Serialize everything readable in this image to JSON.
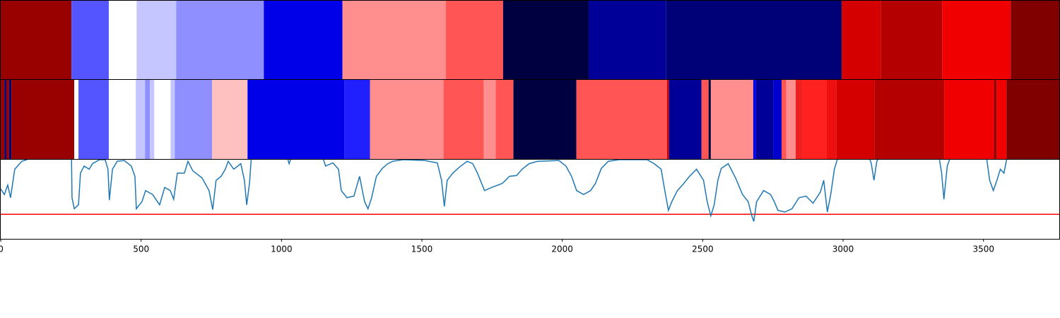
{
  "chart_data": [
    {
      "type": "segments",
      "xlim": [
        0,
        3770
      ],
      "edges": [
        0,
        252,
        385,
        484,
        625,
        937,
        1217,
        1585,
        1789,
        2094,
        2370,
        2995,
        3134,
        3353,
        3597,
        3770
      ],
      "colors": [
        "#990000",
        "#5555ff",
        "#ffffff",
        "#c5c5ff",
        "#8f8fff",
        "#0000e8",
        "#ff8f8f",
        "#ff5555",
        "#000040",
        "#000099",
        "#000077",
        "#d40000",
        "#b50000",
        "#f00000",
        "#800000"
      ]
    },
    {
      "type": "segments",
      "xlim": [
        0,
        3770
      ],
      "edges": [
        0,
        13,
        20,
        30,
        38,
        262,
        277,
        385,
        481,
        514,
        531,
        547,
        605,
        620,
        753,
        879,
        1224,
        1315,
        1577,
        1720,
        1763,
        1826,
        2050,
        2373,
        2380,
        2496,
        2521,
        2529,
        2680,
        2690,
        2751,
        2781,
        2798,
        2831,
        2854,
        2942,
        2977,
        3111,
        3360,
        3537,
        3547,
        3582,
        3770
      ],
      "colors": [
        "#990000",
        "#000077",
        "#990000",
        "#000077",
        "#990000",
        "#ffffff",
        "#5555ff",
        "#ffffff",
        "#c5c5ff",
        "#8f8fff",
        "#c5c5ff",
        "#ffffff",
        "#c5c5ff",
        "#8f8fff",
        "#ffc0c0",
        "#0000e8",
        "#2020ff",
        "#ff8f8f",
        "#ff5555",
        "#ff8f8f",
        "#ff5555",
        "#000040",
        "#ff5555",
        "#cc0000",
        "#000099",
        "#ff5555",
        "#000040",
        "#ff8f8f",
        "#0000e8",
        "#000099",
        "#0000cc",
        "#ff5555",
        "#ff8f8f",
        "#ee2020",
        "#ff2020",
        "#ee1010",
        "#d40000",
        "#b50000",
        "#f00000",
        "#990000",
        "#f00000",
        "#800000"
      ]
    },
    {
      "type": "line",
      "xlim": [
        0,
        3770
      ],
      "ylim": [
        0,
        1
      ],
      "xticks": [
        0,
        500,
        1000,
        1500,
        2000,
        2500,
        3000,
        3500
      ],
      "color": "#1f77b4",
      "hline": 0.31,
      "hline_color": "#ff0000",
      "x": [
        0,
        13,
        25,
        35,
        50,
        75,
        93,
        101,
        252,
        254,
        262,
        277,
        284,
        297,
        315,
        327,
        352,
        372,
        382,
        387,
        398,
        415,
        440,
        465,
        478,
        483,
        503,
        516,
        541,
        566,
        584,
        604,
        616,
        629,
        654,
        667,
        684,
        717,
        742,
        755,
        767,
        785,
        800,
        810,
        830,
        855,
        868,
        876,
        886,
        893,
        1019,
        1027,
        1037,
        1145,
        1157,
        1183,
        1203,
        1213,
        1233,
        1258,
        1278,
        1296,
        1308,
        1321,
        1338,
        1359,
        1379,
        1396,
        1434,
        1510,
        1555,
        1570,
        1580,
        1590,
        1610,
        1635,
        1661,
        1681,
        1698,
        1723,
        1749,
        1786,
        1812,
        1837,
        1857,
        1882,
        1912,
        1988,
        2013,
        2033,
        2051,
        2076,
        2101,
        2118,
        2139,
        2164,
        2202,
        2302,
        2327,
        2352,
        2365,
        2378,
        2390,
        2410,
        2428,
        2453,
        2478,
        2503,
        2516,
        2529,
        2541,
        2554,
        2566,
        2591,
        2617,
        2642,
        2662,
        2675,
        2682,
        2692,
        2717,
        2742,
        2755,
        2768,
        2793,
        2818,
        2843,
        2868,
        2893,
        2919,
        2931,
        2944,
        2956,
        2969,
        2979,
        2994,
        3090,
        3100,
        3110,
        3120,
        3132,
        3341,
        3351,
        3359,
        3371,
        3384,
        3510,
        3522,
        3535,
        3548,
        3560,
        3573,
        3585
      ],
      "values": [
        0.63,
        0.56,
        0.68,
        0.52,
        0.88,
        0.98,
        1.0,
        1.05,
        1.05,
        0.52,
        0.38,
        0.43,
        0.83,
        0.92,
        0.88,
        0.95,
        1.0,
        1.0,
        0.88,
        0.49,
        0.88,
        0.98,
        0.99,
        0.92,
        0.79,
        0.38,
        0.47,
        0.61,
        0.56,
        0.43,
        0.65,
        0.61,
        0.5,
        0.83,
        0.83,
        0.98,
        0.86,
        0.77,
        0.61,
        0.37,
        0.74,
        0.79,
        0.88,
        0.98,
        0.88,
        0.95,
        0.74,
        0.43,
        0.7,
        1.05,
        1.05,
        0.95,
        1.05,
        1.05,
        0.92,
        0.96,
        0.88,
        0.61,
        0.52,
        0.54,
        0.79,
        0.47,
        0.38,
        0.52,
        0.79,
        0.89,
        0.95,
        0.98,
        1.0,
        0.99,
        0.96,
        0.74,
        0.41,
        0.74,
        0.83,
        0.91,
        0.98,
        0.95,
        0.83,
        0.61,
        0.65,
        0.7,
        0.79,
        0.8,
        0.88,
        0.95,
        0.98,
        0.99,
        0.92,
        0.79,
        0.61,
        0.56,
        0.61,
        0.7,
        0.89,
        0.98,
        1.0,
        1.0,
        0.95,
        0.88,
        0.61,
        0.36,
        0.47,
        0.61,
        0.68,
        0.79,
        0.88,
        0.74,
        0.47,
        0.29,
        0.43,
        0.74,
        0.89,
        0.95,
        0.77,
        0.56,
        0.47,
        0.29,
        0.22,
        0.47,
        0.61,
        0.56,
        0.47,
        0.36,
        0.34,
        0.38,
        0.52,
        0.54,
        0.45,
        0.59,
        0.74,
        0.34,
        0.56,
        0.88,
        1.0,
        1.05,
        1.05,
        0.96,
        0.74,
        0.98,
        1.05,
        1.05,
        0.83,
        0.5,
        0.92,
        1.05,
        1.05,
        0.74,
        0.61,
        0.74,
        0.88,
        0.83,
        1.05
      ]
    }
  ]
}
